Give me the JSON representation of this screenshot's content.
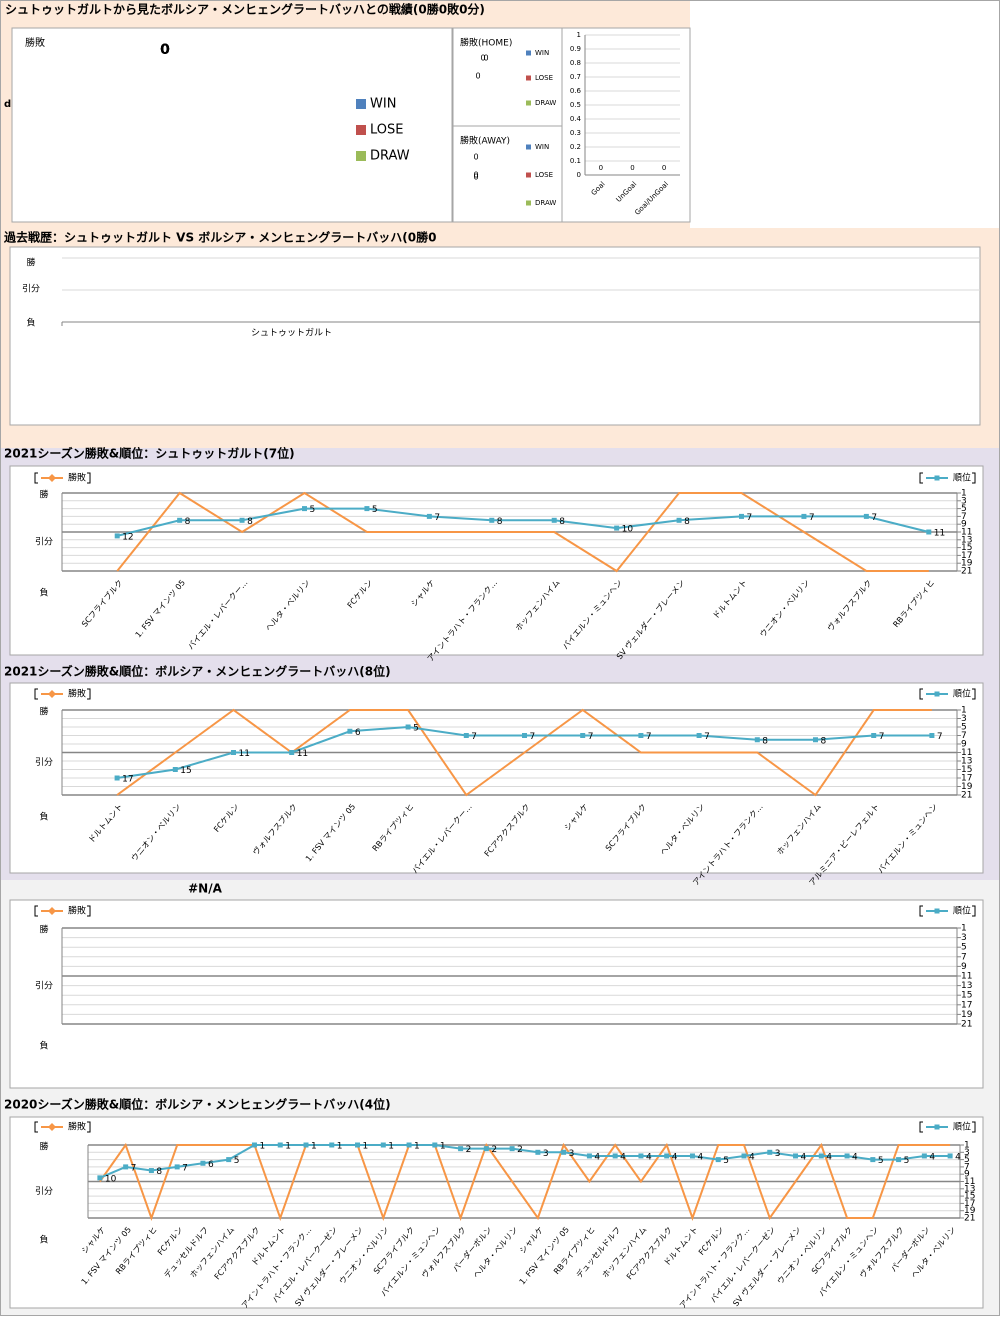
{
  "chart_data": [
    {
      "type": "pie",
      "title": "シュトゥットガルトから見たボルシア・メンヒェングラートバッハとの戦績(0勝0敗0分)",
      "subtitle": "勝敗",
      "annotation": "d",
      "categories": [
        "WIN",
        "LOSE",
        "DRAW"
      ],
      "colors": [
        "#4f81bd",
        "#c0504d",
        "#9bbb59"
      ],
      "values": [
        0,
        0,
        0
      ]
    },
    {
      "type": "pie",
      "title": "勝敗(HOME)",
      "categories": [
        "WIN",
        "LOSE",
        "DRAW"
      ],
      "colors": [
        "#4f81bd",
        "#c0504d",
        "#9bbb59"
      ],
      "values": [
        0,
        0,
        0
      ]
    },
    {
      "type": "pie",
      "title": "勝敗(AWAY)",
      "categories": [
        "WIN",
        "LOSE",
        "DRAW"
      ],
      "colors": [
        "#4f81bd",
        "#c0504d",
        "#9bbb59"
      ],
      "values": [
        0,
        0,
        0
      ]
    },
    {
      "type": "bar",
      "categories": [
        "Goal",
        "UnGoal",
        "Goal/UnGoal"
      ],
      "values": [
        0,
        0,
        0
      ],
      "color": "#4f81bd",
      "ylim": [
        0,
        1
      ],
      "yticks": [
        0,
        0.1,
        0.2,
        0.3,
        0.4,
        0.5,
        0.6,
        0.7,
        0.8,
        0.9,
        1
      ],
      "grid": true
    },
    {
      "type": "timeline",
      "title": "過去戦歴：シュトゥットガルト VS ボルシア・メンヒェングラートバッハ(0勝0",
      "categories": [
        "シュトゥットガルト"
      ],
      "ylim": [
        0,
        2
      ],
      "yticks": [
        {
          "value": 2,
          "label": "勝"
        },
        {
          "value": 1,
          "label": "引分"
        },
        {
          "value": 0,
          "label": "負"
        }
      ]
    },
    {
      "type": "line",
      "title": "2021シーズン勝敗&順位：シュトゥットガルト(7位)",
      "categories": [
        "SCフライブルク",
        "1. FSV マインツ 05",
        "バイエル・レバークー…",
        "ヘルタ・ベルリン",
        "FCケルン",
        "シャルケ",
        "アイントラハト・フランク…",
        "ホッフェンハイム",
        "バイエルン・ミュンヘン",
        "SV ヴェルダー・ブレーメン",
        "ドルトムント",
        "ウニオン・ベルリン",
        "ヴォルフスブルク",
        "RBライプツィヒ"
      ],
      "ylim": [
        0,
        2
      ],
      "yticks": [
        {
          "value": 2,
          "label": "勝"
        },
        {
          "value": 1,
          "label": "引分"
        },
        {
          "value": 0,
          "label": "負"
        }
      ],
      "y2lim": [
        1,
        21
      ],
      "y2ticks": [
        1,
        3,
        5,
        7,
        9,
        11,
        13,
        15,
        17,
        19,
        21
      ],
      "y2_reversed": true,
      "grid": true,
      "series": [
        {
          "name": "勝敗",
          "color": "#f79646",
          "values": [
            0,
            2,
            1,
            2,
            1,
            1,
            1,
            1,
            0,
            2,
            2,
            1,
            0,
            0
          ]
        },
        {
          "name": "順位",
          "color": "#4bacc6",
          "axis": "y2",
          "values": [
            12,
            8,
            8,
            5,
            5,
            7,
            8,
            8,
            10,
            8,
            7,
            7,
            7,
            11
          ]
        }
      ]
    },
    {
      "type": "line",
      "title": "2021シーズン勝敗&順位：ボルシア・メンヒェングラートバッハ(8位)",
      "categories": [
        "ドルトムント",
        "ウニオン・ベルリン",
        "FCケルン",
        "ヴォルフスブルク",
        "1. FSV マインツ 05",
        "RBライプツィヒ",
        "バイエル・レバークー…",
        "FCアウクスブルク",
        "シャルケ",
        "SCフライブルク",
        "ヘルタ・ベルリン",
        "アイントラハト・フランク…",
        "ホッフェンハイム",
        "アルミニア・ビーレフェルト",
        "バイエルン・ミュンヘン"
      ],
      "ylim": [
        0,
        2
      ],
      "yticks": [
        {
          "value": 2,
          "label": "勝"
        },
        {
          "value": 1,
          "label": "引分"
        },
        {
          "value": 0,
          "label": "負"
        }
      ],
      "y2lim": [
        1,
        21
      ],
      "y2ticks": [
        1,
        3,
        5,
        7,
        9,
        11,
        13,
        15,
        17,
        19,
        21
      ],
      "y2_reversed": true,
      "grid": true,
      "series": [
        {
          "name": "勝敗",
          "color": "#f79646",
          "values": [
            0,
            1,
            2,
            1,
            2,
            2,
            0,
            1,
            2,
            1,
            1,
            1,
            0,
            2,
            2
          ]
        },
        {
          "name": "順位",
          "color": "#4bacc6",
          "axis": "y2",
          "values": [
            17,
            15,
            11,
            11,
            6,
            5,
            7,
            7,
            7,
            7,
            7,
            8,
            8,
            7,
            7
          ]
        }
      ]
    },
    {
      "type": "line",
      "title": "#N/A",
      "categories": [],
      "ylim": [
        0,
        2
      ],
      "yticks": [
        {
          "value": 2,
          "label": "勝"
        },
        {
          "value": 1,
          "label": "引分"
        },
        {
          "value": 0,
          "label": "負"
        }
      ],
      "y2lim": [
        1,
        21
      ],
      "y2ticks": [
        1,
        3,
        5,
        7,
        9,
        11,
        13,
        15,
        17,
        19,
        21
      ],
      "y2_reversed": true,
      "grid": true,
      "series": [
        {
          "name": "勝敗",
          "color": "#f79646",
          "values": []
        },
        {
          "name": "順位",
          "color": "#4bacc6",
          "axis": "y2",
          "values": []
        }
      ]
    },
    {
      "type": "line",
      "title": "2020シーズン勝敗&順位：ボルシア・メンヒェングラートバッハ(4位)",
      "categories": [
        "シャルケ",
        "1. FSV マインツ 05",
        "RBライプツィヒ",
        "FCケルン",
        "デュッセルドルフ",
        "ホッフェンハイム",
        "FCアウクスブルク",
        "ドルトムント",
        "アイントラハト・フランク…",
        "バイエル・レバークーゼン",
        "SV ヴェルダー・ブレーメン",
        "ウニオン・ベルリン",
        "SCフライブルク",
        "バイエルン・ミュンヘン",
        "ヴォルフスブルク",
        "パーダーボルン",
        "ヘルタ・ベルリン",
        "シャルケ",
        "1. FSV マインツ 05",
        "RBライプツィヒ",
        "デュッセルドルフ",
        "ホッフェンハイム",
        "FCアウクスブルク",
        "ドルトムント",
        "FCケルン",
        "アイントラハト・フランク…",
        "バイエル・レバークーゼン",
        "SV ヴェルダー・ブレーメン",
        "ウニオン・ベルリン",
        "SCフライブルク",
        "バイエルン・ミュンヘン",
        "ヴォルフスブルク",
        "パーダーボルン",
        "ヘルタ・ベルリン"
      ],
      "ylim": [
        0,
        2
      ],
      "yticks": [
        {
          "value": 2,
          "label": "勝"
        },
        {
          "value": 1,
          "label": "引分"
        },
        {
          "value": 0,
          "label": "負"
        }
      ],
      "y2lim": [
        1,
        21
      ],
      "y2ticks": [
        1,
        3,
        5,
        7,
        9,
        11,
        13,
        15,
        17,
        19,
        21
      ],
      "y2_reversed": true,
      "grid": true,
      "series": [
        {
          "name": "勝敗",
          "color": "#f79646",
          "values": [
            1,
            2,
            0,
            2,
            2,
            2,
            2,
            0,
            2,
            2,
            2,
            0,
            2,
            2,
            0,
            2,
            1,
            0,
            2,
            1,
            2,
            1,
            2,
            0,
            2,
            2,
            0,
            1,
            2,
            0,
            0,
            2,
            2,
            2
          ]
        },
        {
          "name": "順位",
          "color": "#4bacc6",
          "axis": "y2",
          "values": [
            10,
            7,
            8,
            7,
            6,
            5,
            1,
            1,
            1,
            1,
            1,
            1,
            1,
            1,
            2,
            2,
            2,
            3,
            3,
            4,
            4,
            4,
            4,
            4,
            5,
            4,
            3,
            4,
            4,
            4,
            5,
            5,
            4,
            4
          ]
        }
      ]
    }
  ]
}
